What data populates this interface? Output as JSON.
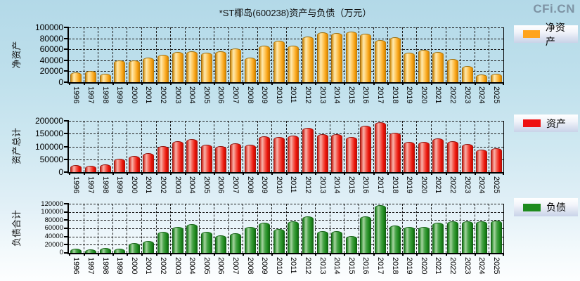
{
  "title": "*ST椰岛(600238)资产与负债（万元）",
  "watermark": "CFi.CN",
  "chart_data": [
    {
      "type": "bar",
      "ylabel": "净资产",
      "legend": "净资产",
      "color": "#FFA41C",
      "categories": [
        "1996",
        "1997",
        "1998",
        "1999",
        "2000",
        "2001",
        "2002",
        "2003",
        "2004",
        "2005",
        "2006",
        "2007",
        "2008",
        "2009",
        "2010",
        "2011",
        "2012",
        "2013",
        "2014",
        "2015",
        "2016",
        "2017",
        "2018",
        "2019",
        "2020",
        "2021",
        "2022",
        "2023",
        "2024",
        "2025"
      ],
      "values": [
        17000,
        19000,
        14000,
        38000,
        39000,
        43000,
        49000,
        54000,
        55000,
        53000,
        55000,
        60000,
        43000,
        65000,
        75000,
        65000,
        82000,
        90000,
        89000,
        91000,
        87000,
        76000,
        81000,
        52000,
        58000,
        54000,
        41000,
        28000,
        13000,
        14000
      ],
      "ylim": [
        0,
        100000
      ],
      "ytick_step": 20000,
      "grid": true,
      "legend_position": "right"
    },
    {
      "type": "bar",
      "ylabel": "资产总计",
      "legend": "资产",
      "color": "#EE1111",
      "categories": [
        "1996",
        "1997",
        "1998",
        "1999",
        "2000",
        "2001",
        "2002",
        "2003",
        "2004",
        "2005",
        "2006",
        "2007",
        "2008",
        "2009",
        "2010",
        "2011",
        "2012",
        "2013",
        "2014",
        "2015",
        "2016",
        "2017",
        "2018",
        "2019",
        "2020",
        "2021",
        "2022",
        "2023",
        "2024",
        "2025"
      ],
      "values": [
        24000,
        23000,
        28000,
        49000,
        61000,
        71000,
        100000,
        117000,
        125000,
        104000,
        98000,
        110000,
        105000,
        137000,
        134000,
        140000,
        170000,
        145000,
        145000,
        135000,
        177000,
        193000,
        150000,
        116000,
        115000,
        128000,
        119000,
        106000,
        86000,
        90000
      ],
      "ylim": [
        0,
        200000
      ],
      "ytick_step": 50000,
      "grid": true,
      "legend_position": "right"
    },
    {
      "type": "bar",
      "ylabel": "负债合计",
      "legend": "负债",
      "color": "#1E8B1E",
      "categories": [
        "1996",
        "1997",
        "1998",
        "1999",
        "2000",
        "2001",
        "2002",
        "2003",
        "2004",
        "2005",
        "2006",
        "2007",
        "2008",
        "2009",
        "2010",
        "2011",
        "2012",
        "2013",
        "2014",
        "2015",
        "2016",
        "2017",
        "2018",
        "2019",
        "2020",
        "2021",
        "2022",
        "2023",
        "2024",
        "2025"
      ],
      "values": [
        9000,
        7000,
        11000,
        9000,
        22000,
        28000,
        50000,
        62000,
        69000,
        49000,
        42000,
        47000,
        61000,
        72000,
        57000,
        75000,
        87000,
        51000,
        51000,
        39000,
        87000,
        115000,
        65000,
        62000,
        61000,
        72000,
        76000,
        75000,
        75000,
        77000
      ],
      "ylim": [
        0,
        120000
      ],
      "ytick_step": 20000,
      "grid": true,
      "legend_position": "right"
    }
  ]
}
